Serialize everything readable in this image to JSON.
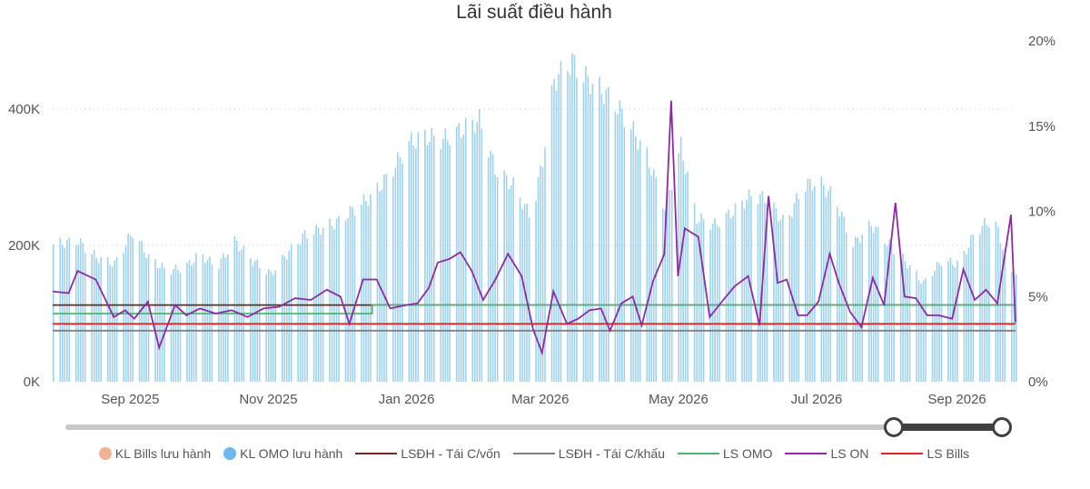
{
  "title": "Lãi suất điều hành",
  "legend": [
    {
      "label": "KL Bills lưu hành",
      "color": "#f4b090",
      "shape": "dot"
    },
    {
      "label": "KL OMO lưu hành",
      "color": "#6cb8f2",
      "shape": "dot"
    },
    {
      "label": "LSĐH - Tái C/vốn",
      "color": "#6b2b14",
      "shape": "line"
    },
    {
      "label": "LSĐH - Tái C/khấu",
      "color": "#808080",
      "shape": "line"
    },
    {
      "label": "LS OMO",
      "color": "#4cb870",
      "shape": "line"
    },
    {
      "label": "LS ON",
      "color": "#8e2aa8",
      "shape": "line"
    },
    {
      "label": "LS Bills",
      "color": "#e02424",
      "shape": "line"
    }
  ],
  "slider": {
    "start_fraction": 0.883,
    "end_fraction": 1.0
  },
  "chart_data": {
    "type": "combo",
    "x_range": [
      "2025-08-01",
      "2026-09-30"
    ],
    "x_ticks": [
      "Sep 2025",
      "Nov 2025",
      "Jan 2026",
      "Mar 2026",
      "May 2026",
      "Jul 2026",
      "Sep 2026"
    ],
    "y_left": {
      "range": [
        0,
        500000
      ],
      "ticks": [
        "0K",
        "200K",
        "400K"
      ],
      "grid": true
    },
    "y_right": {
      "range": [
        0,
        20
      ],
      "ticks": [
        "0%",
        "5%",
        "10%",
        "15%",
        "20%"
      ]
    },
    "bar_series": {
      "name": "KL OMO lưu hành",
      "color": "#9fd2ee",
      "points": [
        [
          "2025-08-01",
          210000
        ],
        [
          "2025-08-12",
          215000
        ],
        [
          "2025-08-20",
          190000
        ],
        [
          "2025-08-28",
          180000
        ],
        [
          "2025-09-05",
          230000
        ],
        [
          "2025-09-12",
          190000
        ],
        [
          "2025-09-20",
          170000
        ],
        [
          "2025-09-28",
          175000
        ],
        [
          "2025-10-05",
          195000
        ],
        [
          "2025-10-12",
          175000
        ],
        [
          "2025-10-20",
          215000
        ],
        [
          "2025-10-28",
          185000
        ],
        [
          "2025-11-05",
          165000
        ],
        [
          "2025-11-12",
          195000
        ],
        [
          "2025-11-20",
          225000
        ],
        [
          "2025-11-28",
          235000
        ],
        [
          "2025-12-05",
          245000
        ],
        [
          "2025-12-12",
          265000
        ],
        [
          "2025-12-20",
          285000
        ],
        [
          "2025-12-28",
          320000
        ],
        [
          "2026-01-05",
          365000
        ],
        [
          "2026-01-12",
          375000
        ],
        [
          "2026-01-20",
          370000
        ],
        [
          "2026-01-28",
          385000
        ],
        [
          "2026-02-05",
          400000
        ],
        [
          "2026-02-12",
          325000
        ],
        [
          "2026-02-20",
          300000
        ],
        [
          "2026-02-28",
          250000
        ],
        [
          "2026-03-05",
          340000
        ],
        [
          "2026-03-10",
          460000
        ],
        [
          "2026-03-18",
          490000
        ],
        [
          "2026-03-22",
          470000
        ],
        [
          "2026-04-05",
          430000
        ],
        [
          "2026-04-12",
          395000
        ],
        [
          "2026-04-20",
          345000
        ],
        [
          "2026-04-28",
          265000
        ],
        [
          "2026-05-05",
          360000
        ],
        [
          "2026-05-12",
          250000
        ],
        [
          "2026-05-20",
          240000
        ],
        [
          "2026-05-28",
          260000
        ],
        [
          "2026-06-05",
          285000
        ],
        [
          "2026-06-12",
          280000
        ],
        [
          "2026-06-20",
          240000
        ],
        [
          "2026-06-28",
          300000
        ],
        [
          "2026-07-05",
          305000
        ],
        [
          "2026-07-12",
          280000
        ],
        [
          "2026-07-20",
          210000
        ],
        [
          "2026-07-28",
          240000
        ],
        [
          "2026-08-05",
          210000
        ],
        [
          "2026-08-12",
          185000
        ],
        [
          "2026-08-20",
          150000
        ],
        [
          "2026-08-28",
          185000
        ],
        [
          "2026-09-05",
          180000
        ],
        [
          "2026-09-12",
          230000
        ],
        [
          "2026-09-20",
          250000
        ],
        [
          "2026-09-28",
          165000
        ]
      ]
    },
    "line_series": [
      {
        "name": "LSĐH - Tái C/vốn",
        "color": "#6b2b14",
        "values": [
          [
            "2025-08-01",
            4.5
          ],
          [
            "2026-09-30",
            4.5
          ]
        ]
      },
      {
        "name": "LSĐH - Tái C/khấu",
        "color": "#808080",
        "values": [
          [
            "2025-08-01",
            3.0
          ],
          [
            "2026-09-30",
            3.0
          ]
        ]
      },
      {
        "name": "LS OMO",
        "color": "#4cb870",
        "values": [
          [
            "2025-08-01",
            4.0
          ],
          [
            "2025-12-20",
            4.0
          ],
          [
            "2025-12-20",
            4.5
          ],
          [
            "2026-09-30",
            4.5
          ]
        ]
      },
      {
        "name": "LS Bills",
        "color": "#e02424",
        "values": [
          [
            "2025-08-01",
            3.4
          ],
          [
            "2026-09-30",
            3.4
          ]
        ]
      },
      {
        "name": "LS ON",
        "color": "#8e2aa8",
        "values": [
          [
            "2025-08-01",
            5.3
          ],
          [
            "2025-08-08",
            5.2
          ],
          [
            "2025-08-12",
            6.5
          ],
          [
            "2025-08-20",
            6.0
          ],
          [
            "2025-08-28",
            3.8
          ],
          [
            "2025-09-02",
            4.2
          ],
          [
            "2025-09-06",
            3.7
          ],
          [
            "2025-09-12",
            4.7
          ],
          [
            "2025-09-17",
            2.0
          ],
          [
            "2025-09-24",
            4.5
          ],
          [
            "2025-09-29",
            3.9
          ],
          [
            "2025-10-05",
            4.3
          ],
          [
            "2025-10-12",
            4.0
          ],
          [
            "2025-10-19",
            4.2
          ],
          [
            "2025-10-26",
            3.8
          ],
          [
            "2025-11-02",
            4.3
          ],
          [
            "2025-11-09",
            4.4
          ],
          [
            "2025-11-16",
            4.9
          ],
          [
            "2025-11-23",
            4.8
          ],
          [
            "2025-11-30",
            5.4
          ],
          [
            "2025-12-06",
            5.0
          ],
          [
            "2025-12-10",
            3.4
          ],
          [
            "2025-12-16",
            6.0
          ],
          [
            "2025-12-22",
            6.0
          ],
          [
            "2025-12-28",
            4.3
          ],
          [
            "2026-01-04",
            4.5
          ],
          [
            "2026-01-09",
            4.6
          ],
          [
            "2026-01-14",
            5.5
          ],
          [
            "2026-01-18",
            7.0
          ],
          [
            "2026-01-23",
            7.2
          ],
          [
            "2026-01-28",
            7.6
          ],
          [
            "2026-02-02",
            6.5
          ],
          [
            "2026-02-07",
            4.8
          ],
          [
            "2026-02-12",
            5.9
          ],
          [
            "2026-02-18",
            7.5
          ],
          [
            "2026-02-24",
            6.2
          ],
          [
            "2026-03-01",
            3.1
          ],
          [
            "2026-03-05",
            1.7
          ],
          [
            "2026-03-10",
            5.3
          ],
          [
            "2026-03-16",
            3.4
          ],
          [
            "2026-03-21",
            3.7
          ],
          [
            "2026-03-26",
            4.2
          ],
          [
            "2026-03-31",
            4.3
          ],
          [
            "2026-04-04",
            3.0
          ],
          [
            "2026-04-09",
            4.6
          ],
          [
            "2026-04-14",
            5.0
          ],
          [
            "2026-04-18",
            3.3
          ],
          [
            "2026-04-23",
            5.9
          ],
          [
            "2026-04-28",
            7.5
          ],
          [
            "2026-05-01",
            16.5
          ],
          [
            "2026-05-04",
            6.2
          ],
          [
            "2026-05-07",
            9.0
          ],
          [
            "2026-05-13",
            8.5
          ],
          [
            "2026-05-18",
            3.8
          ],
          [
            "2026-05-24",
            4.8
          ],
          [
            "2026-05-29",
            5.6
          ],
          [
            "2026-06-04",
            6.2
          ],
          [
            "2026-06-09",
            3.3
          ],
          [
            "2026-06-13",
            10.9
          ],
          [
            "2026-06-17",
            5.8
          ],
          [
            "2026-06-21",
            6.0
          ],
          [
            "2026-06-26",
            3.9
          ],
          [
            "2026-06-30",
            3.9
          ],
          [
            "2026-07-05",
            4.7
          ],
          [
            "2026-07-10",
            7.5
          ],
          [
            "2026-07-14",
            5.8
          ],
          [
            "2026-07-19",
            4.1
          ],
          [
            "2026-07-24",
            3.2
          ],
          [
            "2026-07-29",
            6.1
          ],
          [
            "2026-08-03",
            4.5
          ],
          [
            "2026-08-08",
            10.5
          ],
          [
            "2026-08-12",
            5.0
          ],
          [
            "2026-08-17",
            4.9
          ],
          [
            "2026-08-22",
            3.9
          ],
          [
            "2026-08-27",
            3.9
          ],
          [
            "2026-09-02",
            3.7
          ],
          [
            "2026-09-07",
            6.6
          ],
          [
            "2026-09-12",
            4.8
          ],
          [
            "2026-09-17",
            5.4
          ],
          [
            "2026-09-22",
            4.6
          ],
          [
            "2026-09-28",
            9.8
          ],
          [
            "2026-09-30",
            3.5
          ]
        ]
      }
    ],
    "grid": true
  }
}
